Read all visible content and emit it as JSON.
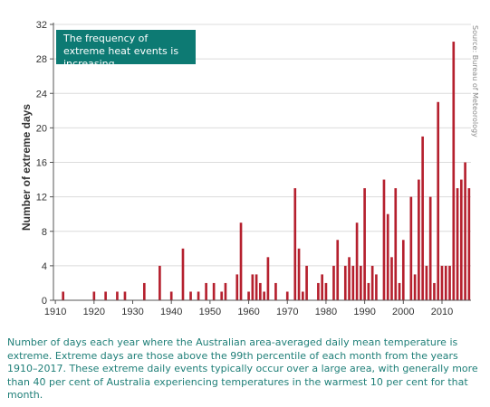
{
  "chart_data": {
    "type": "bar",
    "ylabel": "Number of extreme days",
    "xlabel": "",
    "ylim": [
      0,
      32
    ],
    "yticks": [
      0,
      4,
      8,
      12,
      16,
      20,
      24,
      28,
      32
    ],
    "xticks": [
      1910,
      1920,
      1930,
      1940,
      1950,
      1960,
      1970,
      1980,
      1990,
      2000,
      2010
    ],
    "x_range": [
      1910,
      2017
    ],
    "bar_color": "#b5202e",
    "grid": "horizontal",
    "years": [
      1910,
      1911,
      1912,
      1913,
      1914,
      1915,
      1916,
      1917,
      1918,
      1919,
      1920,
      1921,
      1922,
      1923,
      1924,
      1925,
      1926,
      1927,
      1928,
      1929,
      1930,
      1931,
      1932,
      1933,
      1934,
      1935,
      1936,
      1937,
      1938,
      1939,
      1940,
      1941,
      1942,
      1943,
      1944,
      1945,
      1946,
      1947,
      1948,
      1949,
      1950,
      1951,
      1952,
      1953,
      1954,
      1955,
      1956,
      1957,
      1958,
      1959,
      1960,
      1961,
      1962,
      1963,
      1964,
      1965,
      1966,
      1967,
      1968,
      1969,
      1970,
      1971,
      1972,
      1973,
      1974,
      1975,
      1976,
      1977,
      1978,
      1979,
      1980,
      1981,
      1982,
      1983,
      1984,
      1985,
      1986,
      1987,
      1988,
      1989,
      1990,
      1991,
      1992,
      1993,
      1994,
      1995,
      1996,
      1997,
      1998,
      1999,
      2000,
      2001,
      2002,
      2003,
      2004,
      2005,
      2006,
      2007,
      2008,
      2009,
      2010,
      2011,
      2012,
      2013,
      2014,
      2015,
      2016,
      2017
    ],
    "values": [
      0,
      0,
      1,
      0,
      0,
      0,
      0,
      0,
      0,
      0,
      1,
      0,
      0,
      1,
      0,
      0,
      1,
      0,
      1,
      0,
      0,
      0,
      0,
      2,
      0,
      0,
      0,
      4,
      0,
      0,
      1,
      0,
      0,
      6,
      0,
      1,
      0,
      1,
      0,
      2,
      0,
      2,
      0,
      1,
      2,
      0,
      0,
      3,
      9,
      0,
      1,
      3,
      3,
      2,
      1,
      5,
      0,
      2,
      0,
      0,
      1,
      0,
      13,
      6,
      1,
      4,
      0,
      0,
      2,
      3,
      2,
      0,
      4,
      7,
      0,
      4,
      5,
      4,
      9,
      4,
      13,
      2,
      4,
      3,
      0,
      14,
      10,
      5,
      13,
      2,
      7,
      0,
      12,
      3,
      14,
      19,
      4,
      12,
      2,
      23,
      4,
      4,
      4,
      30,
      13,
      14,
      16,
      13
    ]
  },
  "callout": {
    "text": "The frequency of extreme heat events is increasing."
  },
  "source": {
    "text": "Source: Bureau of Meteorology"
  },
  "caption": {
    "text": "Number of days each year where the Australian area-averaged daily mean temperature is extreme. Extreme days are those above the 99th percentile of each month from the years 1910–2017. These extreme daily events typically occur over a large area, with generally more than 40 per cent of Australia experiencing temperatures in the warmest 10 per cent for that month."
  }
}
